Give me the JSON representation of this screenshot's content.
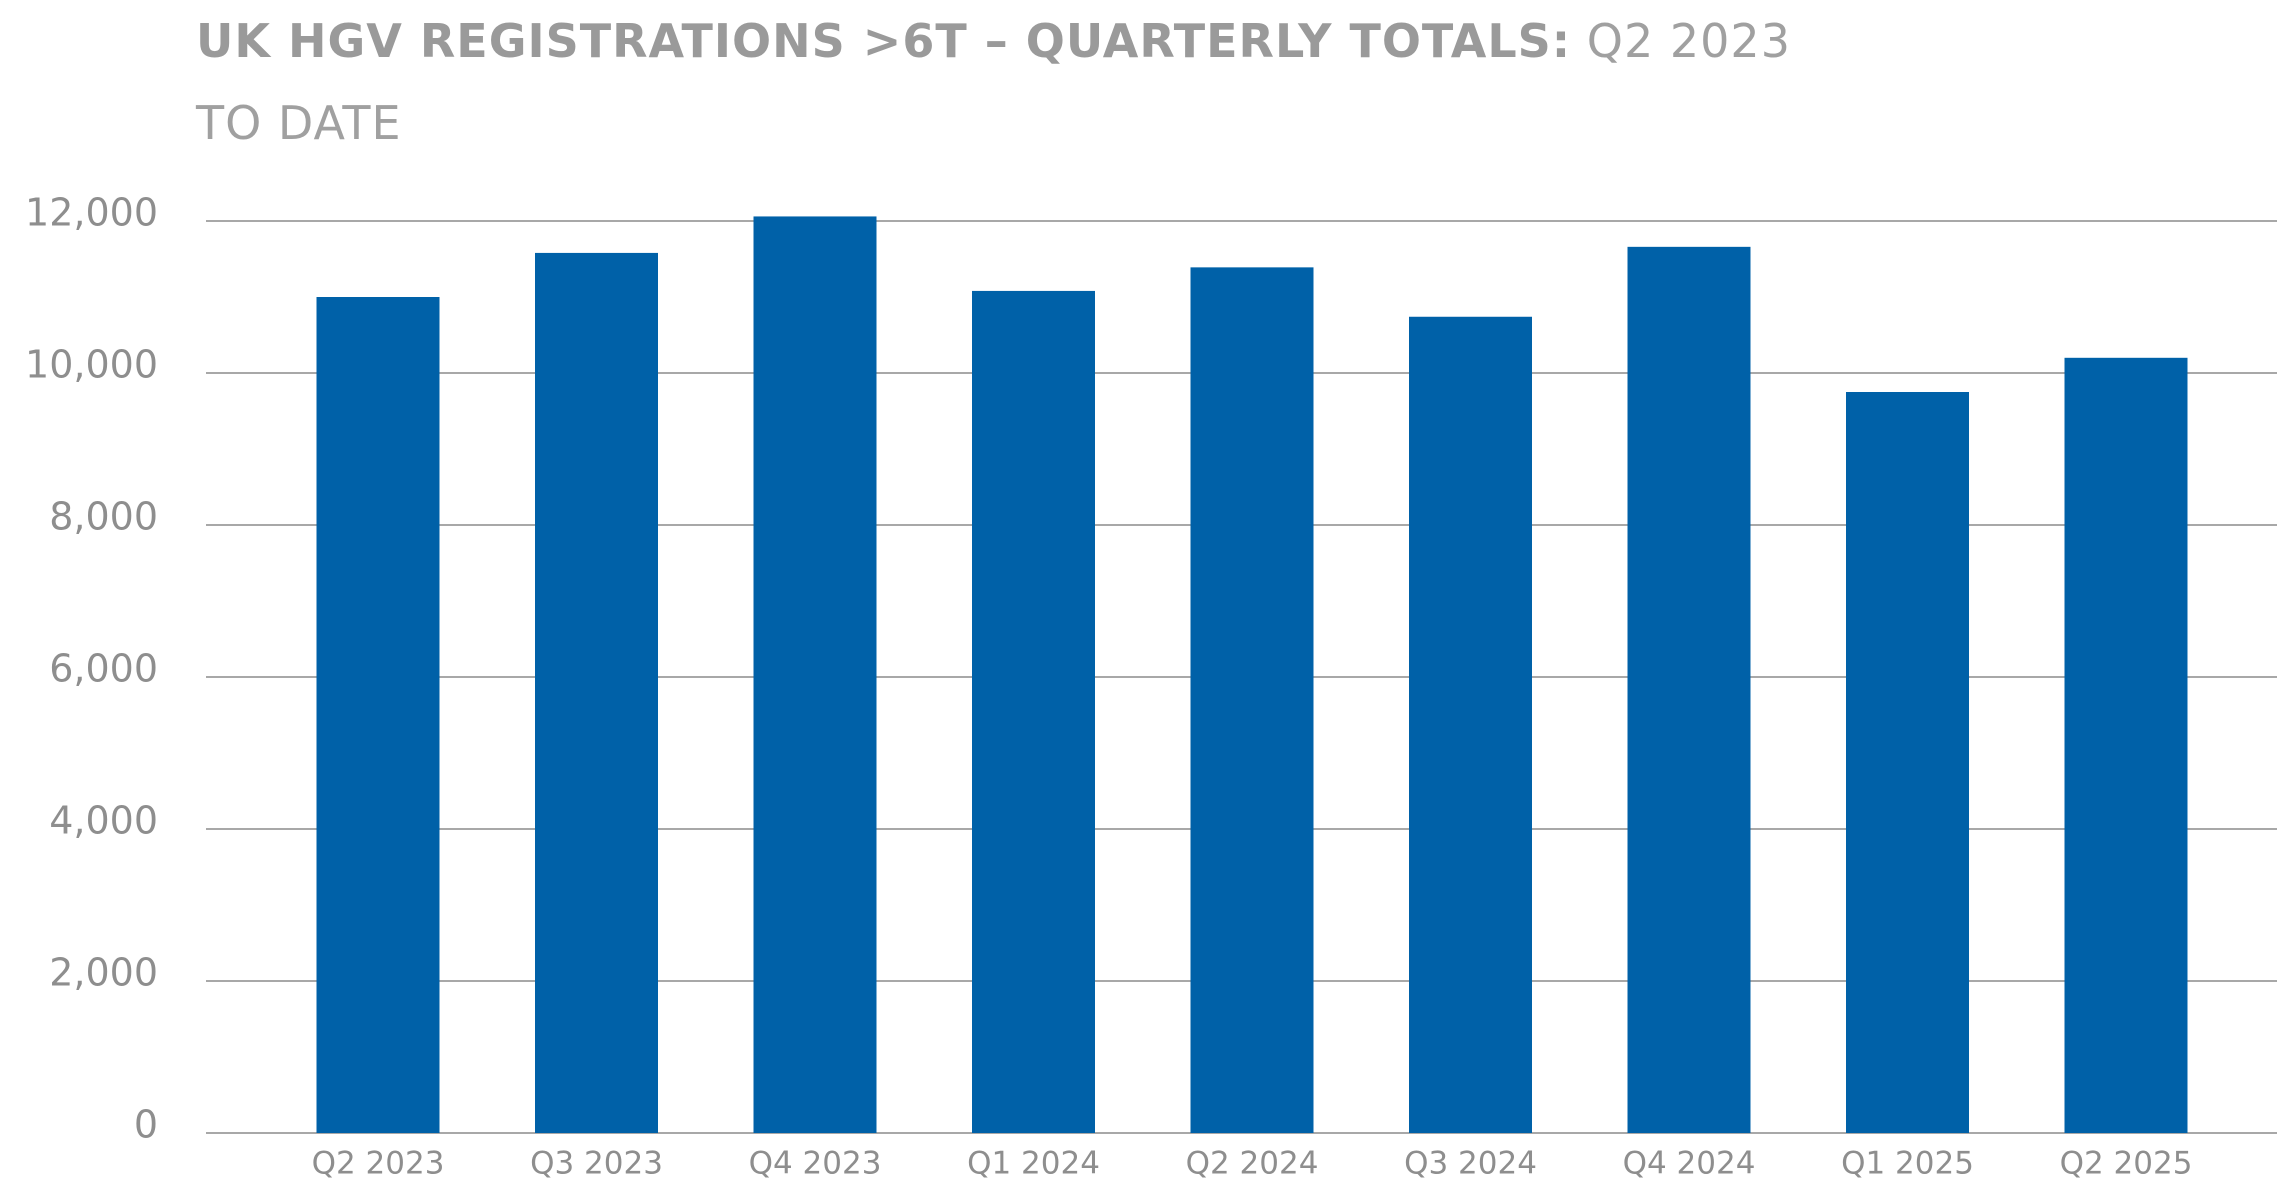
{
  "chart_data": {
    "type": "bar",
    "title": "UK HGV REGISTRATIONS >6T – QUARTERLY TOTALS:",
    "subtitle": "Q2 2023 TO DATE",
    "categories": [
      "Q2 2023",
      "Q3 2023",
      "Q4 2023",
      "Q1 2024",
      "Q2 2024",
      "Q3 2024",
      "Q4 2024",
      "Q1 2025",
      "Q2 2025"
    ],
    "values": [
      11000,
      11580,
      12060,
      11080,
      11390,
      10740,
      11660,
      9750,
      10200
    ],
    "color": "#0061a8",
    "ylim": [
      0,
      12000
    ],
    "yticks": [
      0,
      {
        "value": 2000,
        "label": "2,000"
      },
      {
        "value": 4000,
        "label": "4,000"
      },
      {
        "value": 6000,
        "label": "6,000"
      },
      {
        "value": 8000,
        "label": "8,000"
      },
      {
        "value": 10000,
        "label": "10,000"
      },
      {
        "value": 12000,
        "label": "12,000"
      }
    ],
    "grid": true
  }
}
